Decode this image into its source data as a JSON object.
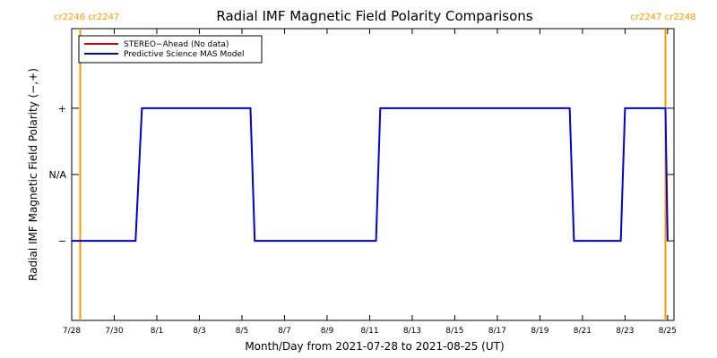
{
  "chart_data": {
    "type": "line",
    "title": "Radial IMF Magnetic Field Polarity Comparisons",
    "xlabel": "Month/Day from 2021-07-28 to 2021-08-25 (UT)",
    "ylabel": "Radial IMF Magnetic Field Polarity (−,+)",
    "x_tick_labels": [
      "7/28",
      "7/30",
      "8/1",
      "8/3",
      "8/5",
      "8/7",
      "8/9",
      "8/11",
      "8/13",
      "8/15",
      "8/17",
      "8/19",
      "8/21",
      "8/23",
      "8/25"
    ],
    "x_tick_days": [
      0,
      2,
      4,
      6,
      8,
      10,
      12,
      14,
      16,
      18,
      20,
      22,
      24,
      26,
      28
    ],
    "xlim": [
      0,
      28.3
    ],
    "y_tick_labels": [
      "−",
      "N/A",
      "+"
    ],
    "y_tick_values": [
      -1,
      0,
      1
    ],
    "ylim": [
      -2.2,
      2.2
    ],
    "carrington_markers": [
      {
        "day": 0.4,
        "label": "cr2246 cr2247",
        "side": "left"
      },
      {
        "day": 27.9,
        "label": "cr2247 cr2248",
        "side": "right"
      }
    ],
    "marker_color": "#ff9900",
    "series": [
      {
        "name": "STEREO−Ahead (No data)",
        "color": "#cc0000",
        "days": [],
        "values": []
      },
      {
        "name": "Predictive Science MAS Model",
        "color": "#0000cc",
        "days": [
          0,
          3.0,
          3.3,
          8.4,
          8.6,
          14.3,
          14.5,
          23.4,
          23.6,
          25.8,
          26.0,
          27.9,
          28.0
        ],
        "values": [
          -1,
          -1,
          1,
          1,
          -1,
          -1,
          1,
          1,
          -1,
          -1,
          1,
          1,
          -1
        ]
      }
    ],
    "legend_position": "top-left"
  }
}
